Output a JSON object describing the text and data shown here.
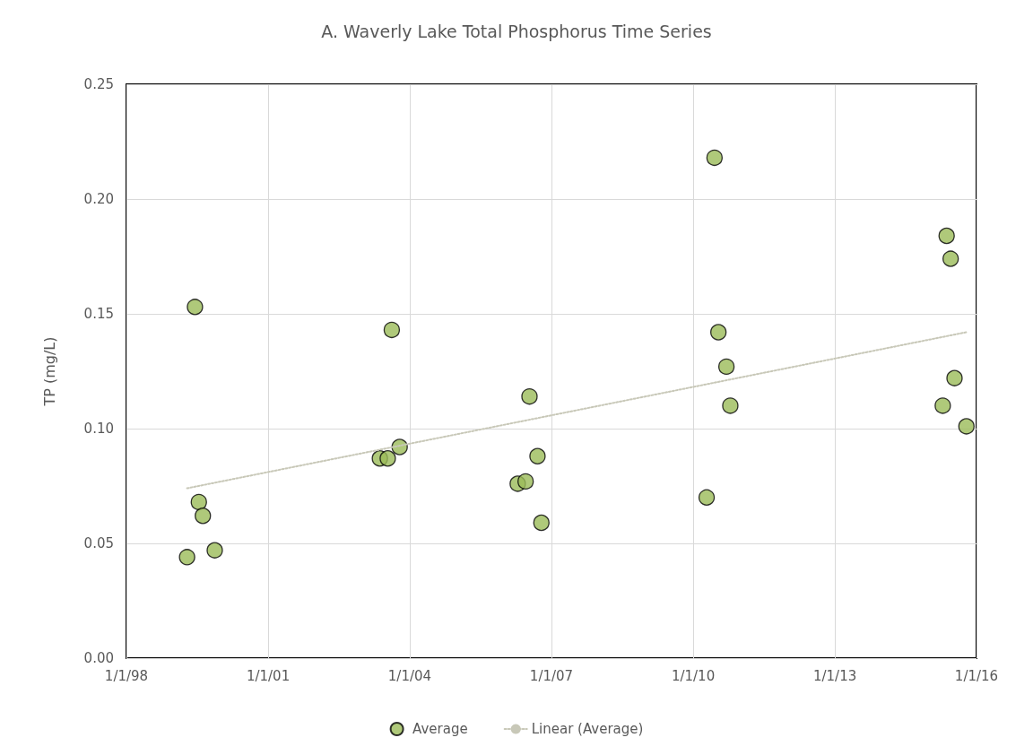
{
  "chart_data": {
    "type": "scatter",
    "title": "A. Waverly Lake Total Phosphorus Time Series",
    "ylabel": "TP (mg/L)",
    "xlim": [
      "1998-01-01",
      "2016-01-01"
    ],
    "xticks": [
      {
        "value": "1998-01-01",
        "label": "1/1/98"
      },
      {
        "value": "2001-01-01",
        "label": "1/1/01"
      },
      {
        "value": "2004-01-01",
        "label": "1/1/04"
      },
      {
        "value": "2007-01-01",
        "label": "1/1/07"
      },
      {
        "value": "2010-01-01",
        "label": "1/1/10"
      },
      {
        "value": "2013-01-01",
        "label": "1/1/13"
      },
      {
        "value": "2016-01-01",
        "label": "1/1/16"
      }
    ],
    "ylim": [
      0,
      0.25
    ],
    "yticks": [
      {
        "value": 0,
        "label": "0.00"
      },
      {
        "value": 0.05,
        "label": "0.05"
      },
      {
        "value": 0.1,
        "label": "0.10"
      },
      {
        "value": 0.15,
        "label": "0.15"
      },
      {
        "value": 0.2,
        "label": "0.20"
      },
      {
        "value": 0.25,
        "label": "0.25"
      }
    ],
    "grid": true,
    "legend": "bottom",
    "series": [
      {
        "name": "Average",
        "color": "#9bbb59",
        "marker": "circle",
        "x": [
          "1999-04",
          "1999-06",
          "1999-07",
          "1999-08",
          "1999-11",
          "2003-05",
          "2003-07",
          "2003-08",
          "2003-10",
          "2006-04",
          "2006-06",
          "2006-07",
          "2006-09",
          "2006-10",
          "2010-04",
          "2010-06",
          "2010-07",
          "2010-09",
          "2010-10",
          "2015-04",
          "2015-05",
          "2015-06",
          "2015-07",
          "2015-10"
        ],
        "values": [
          0.044,
          0.153,
          0.068,
          0.062,
          0.047,
          0.087,
          0.087,
          0.143,
          0.092,
          0.076,
          0.077,
          0.114,
          0.088,
          0.059,
          0.07,
          0.218,
          0.142,
          0.127,
          0.11,
          0.11,
          0.184,
          0.174,
          0.122,
          0.101
        ]
      },
      {
        "name": "Linear (Average)",
        "type": "line",
        "color": "#c8c8b8",
        "marker": "none",
        "line_style": "dotted",
        "x": [
          "1999-04",
          "2015-10"
        ],
        "values": [
          0.074,
          0.142
        ]
      }
    ]
  }
}
